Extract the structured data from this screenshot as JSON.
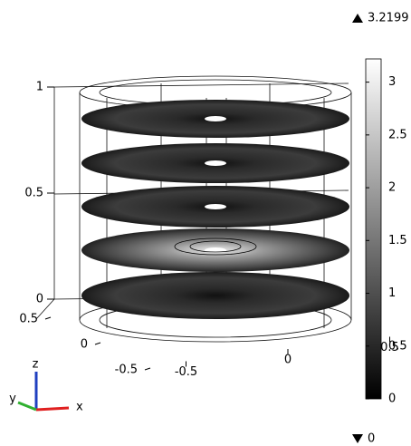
{
  "chart_data": {
    "type": "slice3d",
    "colormap": "gray",
    "clim": [
      0,
      3.2199
    ],
    "colorbar_ticks": [
      0,
      0.5,
      1,
      1.5,
      2,
      2.5,
      3
    ],
    "zticks": [
      0,
      0.5,
      1
    ],
    "yticks": [
      -0.5,
      0,
      0.5
    ],
    "xticks": [
      -0.5,
      0,
      0.5
    ],
    "axis_labels": {
      "x": "x",
      "y": "y",
      "z": "z"
    }
  }
}
